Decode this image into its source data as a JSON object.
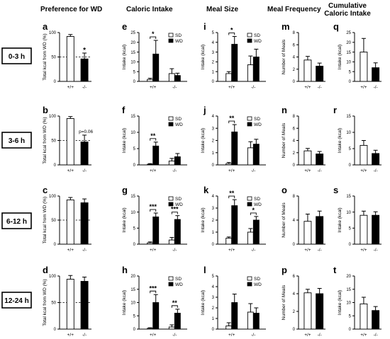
{
  "column_headers": [
    "Preference for WD",
    "Caloric Intake",
    "Meal Size",
    "Meal Frequency",
    "Cumulative\nCaloric Intake"
  ],
  "row_labels": [
    "0-3 h",
    "3-6 h",
    "6-12 h",
    "12-24 h"
  ],
  "genotypes": [
    "+/+",
    "-/-"
  ],
  "legend": {
    "sd": "SD",
    "wd": "WD"
  },
  "colors": {
    "sd": "#ffffff",
    "wd": "#000000",
    "stroke": "#000000"
  },
  "chart_data": [
    {
      "letter": "a",
      "type": "bar",
      "row": 0,
      "col": 0,
      "ylabel": "Total kcal from WD (%)",
      "ylim": [
        0,
        100
      ],
      "yticks": [
        0,
        50,
        100
      ],
      "dashed_line": 50,
      "categories": [
        "+/+",
        "-/-"
      ],
      "values": [
        92,
        46
      ],
      "errors": [
        4,
        12
      ],
      "annotations": [
        {
          "target": 1,
          "text": "*"
        }
      ]
    },
    {
      "letter": "b",
      "type": "bar",
      "row": 1,
      "col": 0,
      "ylabel": "Total kcal from WD (%)",
      "ylim": [
        0,
        100
      ],
      "yticks": [
        0,
        50,
        100
      ],
      "dashed_line": 50,
      "categories": [
        "+/+",
        "-/-"
      ],
      "values": [
        95,
        47
      ],
      "errors": [
        4,
        14
      ],
      "annotations": [
        {
          "target": 1,
          "text": "p=0.06"
        }
      ]
    },
    {
      "letter": "c",
      "type": "bar",
      "row": 2,
      "col": 0,
      "ylabel": "Total kcal from WD (%)",
      "ylim": [
        0,
        100
      ],
      "yticks": [
        0,
        50,
        100
      ],
      "dashed_line": 50,
      "categories": [
        "+/+",
        "-/-"
      ],
      "values": [
        92,
        86
      ],
      "errors": [
        5,
        8
      ],
      "annotations": []
    },
    {
      "letter": "d",
      "type": "bar",
      "row": 3,
      "col": 0,
      "ylabel": "Total kcal from WD (%)",
      "ylim": [
        0,
        100
      ],
      "yticks": [
        0,
        50,
        100
      ],
      "dashed_line": 50,
      "categories": [
        "+/+",
        "-/-"
      ],
      "values": [
        94,
        90
      ],
      "errors": [
        7,
        8
      ],
      "annotations": []
    },
    {
      "letter": "e",
      "type": "bar",
      "row": 0,
      "col": 1,
      "ylabel": "Intake (kcal)",
      "ylim": [
        0,
        25
      ],
      "yticks": [
        0,
        5,
        10,
        15,
        20,
        25
      ],
      "categories": [
        "+/+",
        "-/-"
      ],
      "series": [
        {
          "name": "SD",
          "values": [
            1,
            4
          ],
          "errors": [
            0.6,
            2.5
          ]
        },
        {
          "name": "WD",
          "values": [
            14,
            3
          ],
          "errors": [
            7,
            1.2
          ]
        }
      ],
      "annotations": [
        {
          "group": 0,
          "text": "*"
        }
      ]
    },
    {
      "letter": "f",
      "type": "bar",
      "row": 1,
      "col": 1,
      "ylabel": "Intake (kcal)",
      "ylim": [
        0,
        15
      ],
      "yticks": [
        0,
        5,
        10,
        15
      ],
      "categories": [
        "+/+",
        "-/-"
      ],
      "series": [
        {
          "name": "SD",
          "values": [
            0.2,
            1.2
          ],
          "errors": [
            0.2,
            0.8
          ]
        },
        {
          "name": "WD",
          "values": [
            5.8,
            2.5
          ],
          "errors": [
            1.2,
            1
          ]
        }
      ],
      "annotations": [
        {
          "group": 0,
          "text": "**"
        }
      ]
    },
    {
      "letter": "g",
      "type": "bar",
      "row": 2,
      "col": 1,
      "ylabel": "Intake (kcal)",
      "ylim": [
        0,
        15
      ],
      "yticks": [
        0,
        5,
        10,
        15
      ],
      "categories": [
        "+/+",
        "-/-"
      ],
      "series": [
        {
          "name": "SD",
          "values": [
            0.4,
            1.3
          ],
          "errors": [
            0.3,
            0.8
          ]
        },
        {
          "name": "WD",
          "values": [
            8.5,
            7.7
          ],
          "errors": [
            1.2,
            1.2
          ]
        }
      ],
      "annotations": [
        {
          "group": 0,
          "text": "***"
        },
        {
          "group": 1,
          "text": "***"
        }
      ]
    },
    {
      "letter": "h",
      "type": "bar",
      "row": 3,
      "col": 1,
      "ylabel": "Intake (kcal)",
      "ylim": [
        0,
        20
      ],
      "yticks": [
        0,
        5,
        10,
        15,
        20
      ],
      "categories": [
        "+/+",
        "-/-"
      ],
      "series": [
        {
          "name": "SD",
          "values": [
            0.3,
            0.8
          ],
          "errors": [
            0.2,
            0.8
          ]
        },
        {
          "name": "WD",
          "values": [
            10,
            6
          ],
          "errors": [
            3,
            1.5
          ]
        }
      ],
      "annotations": [
        {
          "group": 0,
          "text": "***"
        },
        {
          "group": 1,
          "text": "**"
        }
      ]
    },
    {
      "letter": "i",
      "type": "bar",
      "row": 0,
      "col": 2,
      "ylabel": "Intake (kcal)",
      "ylim": [
        0,
        5
      ],
      "yticks": [
        0,
        1,
        2,
        3,
        4,
        5
      ],
      "categories": [
        "+/+",
        "-/-"
      ],
      "series": [
        {
          "name": "SD",
          "values": [
            0.8,
            1.7
          ],
          "errors": [
            0.2,
            0.9
          ]
        },
        {
          "name": "WD",
          "values": [
            3.8,
            2.5
          ],
          "errors": [
            0.8,
            0.8
          ]
        }
      ],
      "annotations": [
        {
          "group": 0,
          "text": "*"
        }
      ]
    },
    {
      "letter": "j",
      "type": "bar",
      "row": 1,
      "col": 2,
      "ylabel": "Intake (kcal)",
      "ylim": [
        0,
        4
      ],
      "yticks": [
        0,
        1,
        2,
        3,
        4
      ],
      "categories": [
        "+/+",
        "-/-"
      ],
      "series": [
        {
          "name": "SD",
          "values": [
            0.1,
            1.4
          ],
          "errors": [
            0.1,
            0.5
          ]
        },
        {
          "name": "WD",
          "values": [
            2.7,
            1.7
          ],
          "errors": [
            0.6,
            0.4
          ]
        }
      ],
      "annotations": [
        {
          "group": 0,
          "text": "**"
        }
      ]
    },
    {
      "letter": "k",
      "type": "bar",
      "row": 2,
      "col": 2,
      "ylabel": "Intake (kcal)",
      "ylim": [
        0,
        4
      ],
      "yticks": [
        0,
        1,
        2,
        3,
        4
      ],
      "categories": [
        "+/+",
        "-/-"
      ],
      "series": [
        {
          "name": "SD",
          "values": [
            0.5,
            1.0
          ],
          "errors": [
            0.1,
            0.3
          ]
        },
        {
          "name": "WD",
          "values": [
            3.2,
            2.0
          ],
          "errors": [
            0.5,
            0.3
          ]
        }
      ],
      "annotations": [
        {
          "group": 0,
          "text": "**"
        },
        {
          "group": 1,
          "text": "*"
        }
      ]
    },
    {
      "letter": "l",
      "type": "bar",
      "row": 3,
      "col": 2,
      "ylabel": "Intake (kcal)",
      "ylim": [
        0,
        5
      ],
      "yticks": [
        0,
        1,
        2,
        3,
        4,
        5
      ],
      "categories": [
        "+/+",
        "-/-"
      ],
      "series": [
        {
          "name": "SD",
          "values": [
            0.3,
            1.6
          ],
          "errors": [
            0.3,
            0.8
          ]
        },
        {
          "name": "WD",
          "values": [
            2.5,
            1.5
          ],
          "errors": [
            0.8,
            0.5
          ]
        }
      ],
      "annotations": []
    },
    {
      "letter": "m",
      "type": "bar",
      "row": 0,
      "col": 3,
      "ylabel": "Number of Meals",
      "ylim": [
        0,
        8
      ],
      "yticks": [
        0,
        2,
        4,
        6,
        8
      ],
      "categories": [
        "+/+",
        "-/-"
      ],
      "values": [
        3.5,
        2.5
      ],
      "errors": [
        0.6,
        0.5
      ],
      "annotations": []
    },
    {
      "letter": "n",
      "type": "bar",
      "row": 1,
      "col": 3,
      "ylabel": "Number of Meals",
      "ylim": [
        0,
        8
      ],
      "yticks": [
        0,
        2,
        4,
        6,
        8
      ],
      "categories": [
        "+/+",
        "-/-"
      ],
      "values": [
        2.3,
        1.8
      ],
      "errors": [
        0.4,
        0.4
      ],
      "annotations": []
    },
    {
      "letter": "o",
      "type": "bar",
      "row": 2,
      "col": 3,
      "ylabel": "Number of Meals",
      "ylim": [
        0,
        8
      ],
      "yticks": [
        0,
        4,
        8
      ],
      "categories": [
        "+/+",
        "-/-"
      ],
      "values": [
        3.8,
        4.6
      ],
      "errors": [
        1.2,
        0.9
      ],
      "annotations": []
    },
    {
      "letter": "p",
      "type": "bar",
      "row": 3,
      "col": 3,
      "ylabel": "Number of Meals",
      "ylim": [
        0,
        6
      ],
      "yticks": [
        0,
        2,
        4,
        6
      ],
      "categories": [
        "+/+",
        "-/-"
      ],
      "values": [
        4.1,
        4.0
      ],
      "errors": [
        0.4,
        0.6
      ],
      "annotations": []
    },
    {
      "letter": "q",
      "type": "bar",
      "row": 0,
      "col": 4,
      "ylabel": "Intake (kcal)",
      "ylim": [
        0,
        25
      ],
      "yticks": [
        0,
        5,
        10,
        15,
        20,
        25
      ],
      "categories": [
        "+/+",
        "-/-"
      ],
      "values": [
        15,
        7
      ],
      "errors": [
        7,
        2.5
      ],
      "annotations": []
    },
    {
      "letter": "r",
      "type": "bar",
      "row": 1,
      "col": 4,
      "ylabel": "Intake (kcal)",
      "ylim": [
        0,
        15
      ],
      "yticks": [
        0,
        5,
        10,
        15
      ],
      "categories": [
        "+/+",
        "-/-"
      ],
      "values": [
        6,
        3.5
      ],
      "errors": [
        1.5,
        1
      ],
      "annotations": []
    },
    {
      "letter": "s",
      "type": "bar",
      "row": 2,
      "col": 4,
      "ylabel": "Intake (kcal)",
      "ylim": [
        0,
        15
      ],
      "yticks": [
        0,
        5,
        10,
        15
      ],
      "categories": [
        "+/+",
        "-/-"
      ],
      "values": [
        9,
        9
      ],
      "errors": [
        1.3,
        1.1
      ],
      "annotations": []
    },
    {
      "letter": "t",
      "type": "bar",
      "row": 3,
      "col": 4,
      "ylabel": "Intake (kcal)",
      "ylim": [
        0,
        20
      ],
      "yticks": [
        0,
        5,
        10,
        15,
        20
      ],
      "categories": [
        "+/+",
        "-/-"
      ],
      "values": [
        9.5,
        7
      ],
      "errors": [
        2.5,
        1.5
      ],
      "annotations": []
    }
  ]
}
